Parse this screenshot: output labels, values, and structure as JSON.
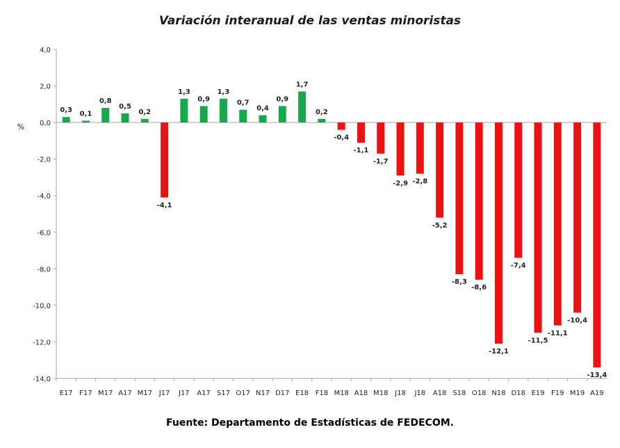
{
  "chart_data": {
    "type": "bar",
    "title": "Variación interanual de las ventas minoristas",
    "ylabel": "%",
    "xlabel": "",
    "ylim": [
      -14,
      4
    ],
    "yticks": [
      4,
      2,
      0,
      -2,
      -4,
      -6,
      -8,
      -10,
      -12,
      -14
    ],
    "ytick_labels": [
      "4,0",
      "2,0",
      "0,0",
      "-2,0",
      "-4,0",
      "-6,0",
      "-8,0",
      "-10,0",
      "-12,0",
      "-14,0"
    ],
    "categories": [
      "E17",
      "F17",
      "M17",
      "A17",
      "M17",
      "J17",
      "J17",
      "A17",
      "S17",
      "O17",
      "N17",
      "D17",
      "E18",
      "F18",
      "M18",
      "A18",
      "M18",
      "J18",
      "J18",
      "A18",
      "S18",
      "O18",
      "N18",
      "D18",
      "E19",
      "F19",
      "M19",
      "A19"
    ],
    "values": [
      0.3,
      0.1,
      0.8,
      0.5,
      0.2,
      -4.1,
      1.3,
      0.9,
      1.3,
      0.7,
      0.4,
      0.9,
      1.7,
      0.2,
      -0.4,
      -1.1,
      -1.7,
      -2.9,
      -2.8,
      -5.2,
      -8.3,
      -8.6,
      -12.1,
      -7.4,
      -11.5,
      -11.1,
      -10.4,
      -13.4
    ],
    "value_labels": [
      "0,3",
      "0,1",
      "0,8",
      "0,5",
      "0,2",
      "-4,1",
      "1,3",
      "0,9",
      "1,3",
      "0,7",
      "0,4",
      "0,9",
      "1,7",
      "0,2",
      "-0,4",
      "-1,1",
      "-1,7",
      "-2,9",
      "-2,8",
      "-5,2",
      "-8,3",
      "-8,6",
      "-12,1",
      "-7,4",
      "-11,5",
      "-11,1",
      "-10,4",
      "-13,4"
    ],
    "colors": {
      "positive": "#18a84c",
      "negative": "#ee1111",
      "axis": "#a6a6a6"
    },
    "grid": false,
    "legend": "none"
  },
  "footer": {
    "source": "Fuente: Departamento de Estadísticas de FEDECOM."
  }
}
